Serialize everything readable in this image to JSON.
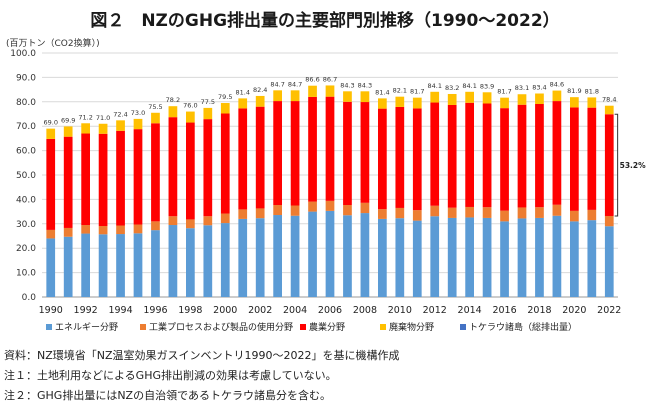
{
  "header": {
    "title": "図２　NZのGHG排出量の主要部門別推移（1990～2022）",
    "unit": "(百万トン（CO2換算）)"
  },
  "notes": [
    "資料：NZ環境省「NZ温室効果ガスインベントリ1990～2022」を基に機構作成",
    "注１：土地利用などによるGHG排出削減の効果は考慮していない。",
    "注２：GHG排出量にはNZの自治領であるトケラウ諸島分を含む。"
  ],
  "annotation": "53.2%",
  "colors": {
    "energy": "#5b9bd5",
    "industry": "#ed7d31",
    "agriculture": "#ff0000",
    "waste": "#ffc000",
    "tokelau": "#4472c4"
  },
  "chart_data": {
    "type": "bar",
    "stacked": true,
    "title": "NZのGHG排出量の主要部門別推移（1990～2022）",
    "ylabel": "百万トン（CO2換算）",
    "ylim": [
      0,
      100
    ],
    "yticks": [
      "0.0",
      "10.0",
      "20.0",
      "30.0",
      "40.0",
      "50.0",
      "60.0",
      "70.0",
      "80.0",
      "90.0",
      "100.0"
    ],
    "categories": [
      "1990",
      "1991",
      "1992",
      "1993",
      "1994",
      "1995",
      "1996",
      "1997",
      "1998",
      "1999",
      "2000",
      "2001",
      "2002",
      "2003",
      "2004",
      "2005",
      "2006",
      "2007",
      "2008",
      "2009",
      "2010",
      "2011",
      "2012",
      "2013",
      "2014",
      "2015",
      "2016",
      "2017",
      "2018",
      "2019",
      "2020",
      "2021",
      "2022"
    ],
    "xtick_labels": [
      "1990",
      "",
      "1992",
      "",
      "1994",
      "",
      "1996",
      "",
      "1998",
      "",
      "2000",
      "",
      "2002",
      "",
      "2004",
      "",
      "2006",
      "",
      "2008",
      "",
      "2010",
      "",
      "2012",
      "",
      "2014",
      "",
      "2016",
      "",
      "2018",
      "",
      "2020",
      "",
      "2022"
    ],
    "totals": [
      "69.0",
      "69.9",
      "71.2",
      "71.0",
      "72.4",
      "73.0",
      "75.5",
      "78.2",
      "76.0",
      "77.5",
      "79.5",
      "81.4",
      "82.4",
      "84.7",
      "84.7",
      "86.6",
      "86.7",
      "84.3",
      "84.3",
      "81.4",
      "82.1",
      "81.7",
      "84.1",
      "83.2",
      "84.1",
      "83.9",
      "81.7",
      "83.1",
      "83.4",
      "84.6",
      "81.9",
      "81.8",
      "78.4"
    ],
    "series": [
      {
        "name": "エネルギー分野",
        "color": "#5b9bd5",
        "values": [
          24.0,
          24.7,
          26.0,
          25.7,
          25.8,
          26.1,
          27.4,
          29.5,
          28.2,
          29.4,
          30.3,
          32.0,
          32.3,
          33.6,
          33.3,
          35.0,
          35.3,
          33.5,
          34.4,
          32.0,
          32.3,
          31.3,
          33.1,
          32.4,
          32.6,
          32.4,
          31.0,
          32.2,
          32.4,
          33.3,
          31.0,
          31.5,
          29.0
        ]
      },
      {
        "name": "工業プロセスおよび製品の使用分野",
        "color": "#ed7d31",
        "values": [
          3.5,
          3.6,
          3.5,
          3.4,
          3.5,
          3.6,
          3.6,
          3.6,
          3.6,
          3.7,
          3.9,
          3.9,
          4.0,
          4.1,
          4.2,
          4.1,
          4.1,
          4.2,
          4.2,
          4.0,
          4.2,
          4.3,
          4.3,
          4.2,
          4.3,
          4.4,
          4.4,
          4.5,
          4.4,
          4.5,
          4.3,
          4.2,
          4.2
        ]
      },
      {
        "name": "農業分野",
        "color": "#ff0000",
        "values": [
          37.3,
          37.4,
          37.5,
          37.8,
          38.8,
          39.1,
          40.2,
          40.6,
          39.7,
          39.8,
          41.0,
          41.4,
          41.7,
          42.6,
          42.8,
          42.9,
          42.7,
          42.3,
          41.3,
          41.2,
          41.4,
          41.7,
          42.3,
          42.1,
          42.7,
          42.5,
          42.0,
          42.1,
          42.3,
          42.5,
          42.4,
          41.9,
          41.7
        ]
      },
      {
        "name": "廃棄物分野",
        "color": "#ffc000",
        "values": [
          4.2,
          4.2,
          4.2,
          4.1,
          4.3,
          4.2,
          4.3,
          4.5,
          4.5,
          4.6,
          4.3,
          4.1,
          4.4,
          4.4,
          4.4,
          4.6,
          4.6,
          4.3,
          4.4,
          4.2,
          4.2,
          4.4,
          4.4,
          4.5,
          4.5,
          4.6,
          4.3,
          4.3,
          4.3,
          4.3,
          4.2,
          4.2,
          3.5
        ]
      },
      {
        "name": "トケラウ諸島（総排出量）",
        "color": "#4472c4",
        "values": [
          0.0,
          0.0,
          0.0,
          0.0,
          0.0,
          0.0,
          0.0,
          0.0,
          0.0,
          0.0,
          0.0,
          0.0,
          0.0,
          0.0,
          0.0,
          0.0,
          0.0,
          0.0,
          0.0,
          0.0,
          0.0,
          0.0,
          0.0,
          0.0,
          0.0,
          0.0,
          0.0,
          0.0,
          0.0,
          0.0,
          0.0,
          0.0,
          0.0
        ]
      }
    ],
    "legend": [
      "エネルギー分野",
      "工業プロセスおよび製品の使用分野",
      "農業分野",
      "廃棄物分野",
      "トケラウ諸島（総排出量）"
    ],
    "legend_position": "bottom",
    "grid": true
  }
}
